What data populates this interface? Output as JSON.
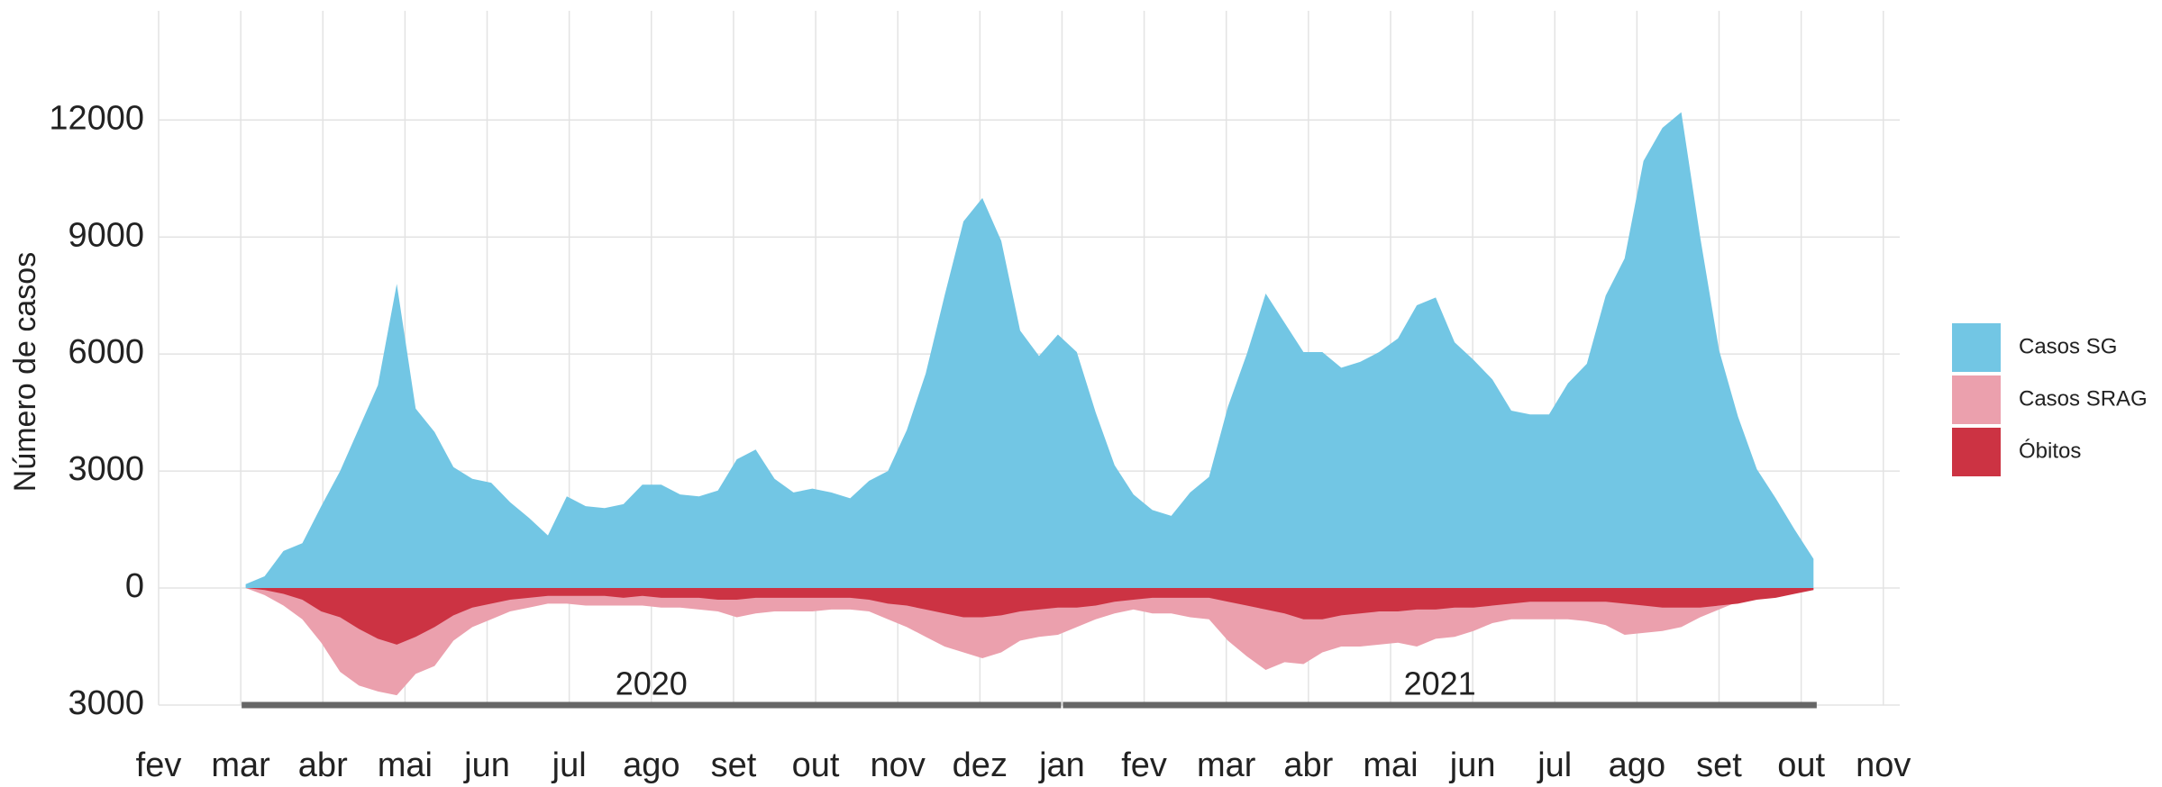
{
  "chart_data": {
    "type": "area",
    "ylabel": "Número de casos",
    "x": [
      1.06,
      1.29,
      1.52,
      1.75,
      1.98,
      2.21,
      2.44,
      2.67,
      2.9,
      3.13,
      3.36,
      3.59,
      3.82,
      4.05,
      4.28,
      4.51,
      4.74,
      4.97,
      5.2,
      5.43,
      5.66,
      5.89,
      6.12,
      6.35,
      6.58,
      6.81,
      7.04,
      7.27,
      7.5,
      7.73,
      7.96,
      8.19,
      8.42,
      8.65,
      8.88,
      9.11,
      9.34,
      9.57,
      9.8,
      10.03,
      10.26,
      10.49,
      10.72,
      10.95,
      11.18,
      11.41,
      11.64,
      11.87,
      12.1,
      12.33,
      12.56,
      12.79,
      13.02,
      13.25,
      13.48,
      13.71,
      13.94,
      14.17,
      14.4,
      14.63,
      14.86,
      15.09,
      15.32,
      15.55,
      15.78,
      16.01,
      16.24,
      16.47,
      16.7,
      16.93,
      17.16,
      17.39,
      17.62,
      17.85,
      18.08,
      18.31,
      18.54,
      18.77,
      19.0,
      19.23,
      19.46,
      19.69,
      19.92,
      20.15
    ],
    "series": [
      {
        "name": "Casos SG",
        "color": "#72c6e4",
        "values": [
          100,
          300,
          950,
          1150,
          2100,
          3000,
          4100,
          5200,
          7800,
          4600,
          4000,
          3100,
          2800,
          2700,
          2200,
          1800,
          1350,
          2350,
          2100,
          2050,
          2150,
          2650,
          2650,
          2400,
          2350,
          2500,
          3300,
          3550,
          2800,
          2450,
          2550,
          2450,
          2300,
          2750,
          3000,
          4050,
          5500,
          7500,
          9400,
          10000,
          8900,
          6600,
          5950,
          6500,
          6050,
          4500,
          3150,
          2400,
          2000,
          1850,
          2450,
          2850,
          4650,
          6000,
          7550,
          6800,
          6050,
          6050,
          5650,
          5800,
          6050,
          6400,
          7250,
          7450,
          6300,
          5850,
          5350,
          4550,
          4450,
          4450,
          5250,
          5750,
          7500,
          8450,
          10950,
          11800,
          12200,
          9000,
          6100,
          4400,
          3050,
          2300,
          1500,
          750
        ]
      },
      {
        "name": "Casos SRAG",
        "color": "#eba0ad",
        "values": [
          0,
          -180,
          -450,
          -800,
          -1400,
          -2150,
          -2500,
          -2650,
          -2750,
          -2200,
          -2000,
          -1350,
          -1000,
          -800,
          -600,
          -500,
          -400,
          -400,
          -450,
          -450,
          -450,
          -450,
          -500,
          -500,
          -550,
          -600,
          -750,
          -650,
          -600,
          -600,
          -600,
          -550,
          -550,
          -600,
          -800,
          -1000,
          -1250,
          -1500,
          -1650,
          -1800,
          -1650,
          -1350,
          -1250,
          -1200,
          -1000,
          -800,
          -650,
          -550,
          -650,
          -650,
          -750,
          -800,
          -1350,
          -1750,
          -2100,
          -1900,
          -1950,
          -1650,
          -1500,
          -1500,
          -1450,
          -1400,
          -1500,
          -1300,
          -1250,
          -1100,
          -900,
          -800,
          -800,
          -800,
          -800,
          -850,
          -950,
          -1200,
          -1150,
          -1100,
          -1000,
          -750,
          -550,
          -350,
          -250,
          -200,
          -100,
          -50
        ]
      },
      {
        "name": "Óbitos",
        "color": "#cc3343",
        "values": [
          0,
          -50,
          -150,
          -300,
          -600,
          -750,
          -1050,
          -1300,
          -1450,
          -1250,
          -1000,
          -700,
          -500,
          -400,
          -300,
          -250,
          -200,
          -200,
          -200,
          -200,
          -250,
          -200,
          -250,
          -250,
          -250,
          -300,
          -300,
          -250,
          -250,
          -250,
          -250,
          -250,
          -250,
          -300,
          -400,
          -450,
          -550,
          -650,
          -750,
          -750,
          -700,
          -600,
          -550,
          -500,
          -500,
          -450,
          -350,
          -300,
          -250,
          -250,
          -250,
          -250,
          -350,
          -450,
          -550,
          -650,
          -800,
          -800,
          -700,
          -650,
          -600,
          -600,
          -550,
          -550,
          -500,
          -500,
          -450,
          -400,
          -350,
          -350,
          -350,
          -350,
          -350,
          -400,
          -450,
          -500,
          -500,
          -500,
          -450,
          -400,
          -300,
          -250,
          -150,
          -50
        ]
      }
    ],
    "xlim": [
      0,
      21.2
    ],
    "xticks": [
      {
        "value": 0,
        "label": "fev"
      },
      {
        "value": 1,
        "label": "mar"
      },
      {
        "value": 2,
        "label": "abr"
      },
      {
        "value": 3,
        "label": "mai"
      },
      {
        "value": 4,
        "label": "jun"
      },
      {
        "value": 5,
        "label": "jul"
      },
      {
        "value": 6,
        "label": "ago"
      },
      {
        "value": 7,
        "label": "set"
      },
      {
        "value": 8,
        "label": "out"
      },
      {
        "value": 9,
        "label": "nov"
      },
      {
        "value": 10,
        "label": "dez"
      },
      {
        "value": 11,
        "label": "jan"
      },
      {
        "value": 12,
        "label": "fev"
      },
      {
        "value": 13,
        "label": "mar"
      },
      {
        "value": 14,
        "label": "abr"
      },
      {
        "value": 15,
        "label": "mai"
      },
      {
        "value": 16,
        "label": "jun"
      },
      {
        "value": 17,
        "label": "jul"
      },
      {
        "value": 18,
        "label": "ago"
      },
      {
        "value": 19,
        "label": "set"
      },
      {
        "value": 20,
        "label": "out"
      },
      {
        "value": 21,
        "label": "nov"
      }
    ],
    "ylim": [
      -3000,
      14800
    ],
    "yticks": [
      {
        "value": -3000,
        "label": "3000"
      },
      0,
      3000,
      6000,
      9000,
      12000
    ],
    "year_bands": [
      {
        "label": "2020",
        "start": 1,
        "end": 11
      },
      {
        "label": "2021",
        "start": 11,
        "end": 20.2
      }
    ],
    "grid": true,
    "legend": "right"
  }
}
